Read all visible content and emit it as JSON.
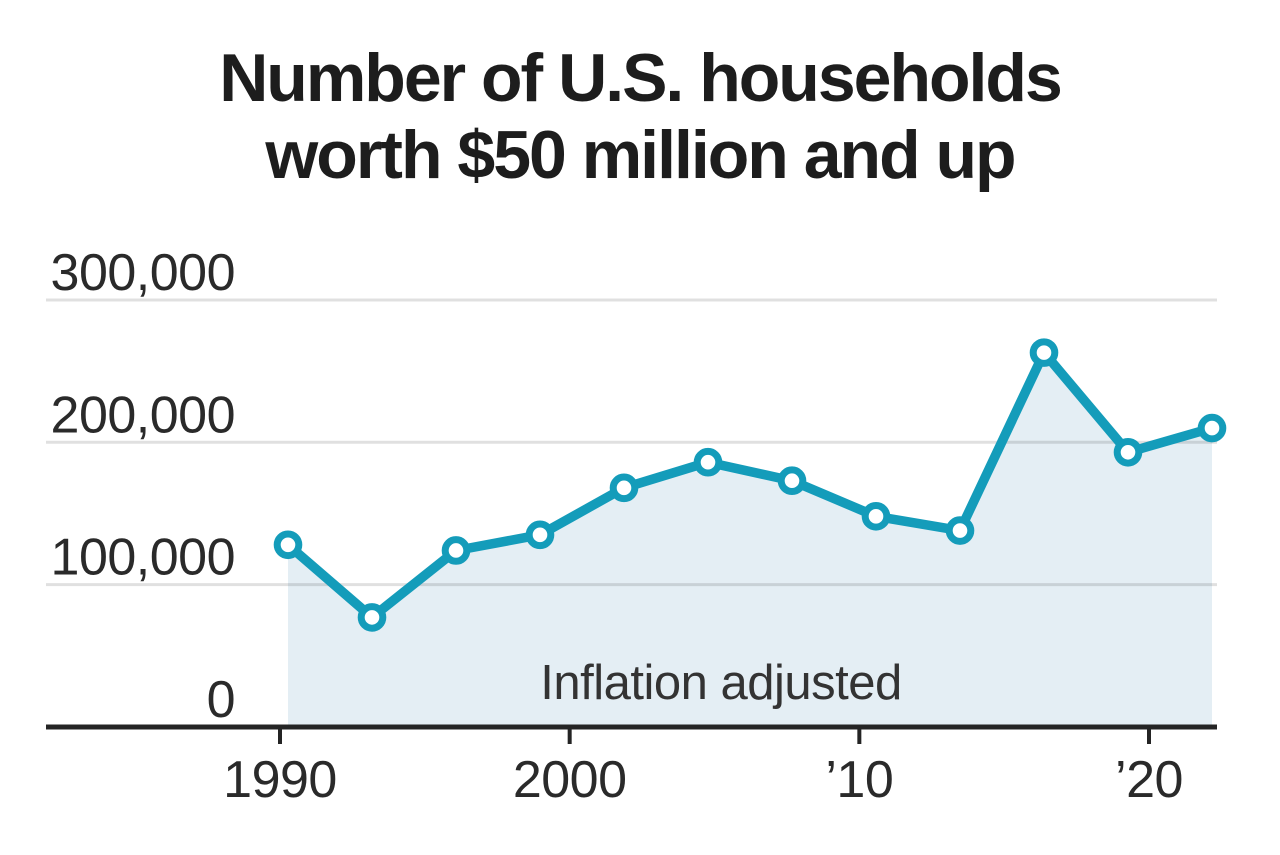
{
  "chart_data": {
    "type": "line",
    "title": "Number of U.S. households worth $50 million and up",
    "title_lines": [
      "Number of U.S. households",
      "worth $50 million and up"
    ],
    "annotation": "Inflation adjusted",
    "x": [
      1989,
      1992,
      1995,
      1998,
      2001,
      2004,
      2007,
      2010,
      2013,
      2016,
      2019,
      2022
    ],
    "series": [
      {
        "name": "U.S. households worth $50 million and up",
        "values": [
          128000,
          77000,
          124000,
          135000,
          168000,
          186000,
          173000,
          148000,
          138000,
          263000,
          193000,
          210000
        ]
      }
    ],
    "y_ticks": [
      {
        "value": 300000,
        "label": "300,000"
      },
      {
        "value": 200000,
        "label": "200,000"
      },
      {
        "value": 100000,
        "label": "100,000"
      },
      {
        "value": 0,
        "label": "0"
      }
    ],
    "x_ticks": [
      {
        "year": 1990,
        "label": "1990"
      },
      {
        "year": 2000,
        "label": "2000"
      },
      {
        "year": 2010,
        "label": "’10"
      },
      {
        "year": 2020,
        "label": "’20"
      }
    ],
    "ylim": [
      0,
      300000
    ],
    "grid": true,
    "legend": "none",
    "colors": {
      "line": "#149cba",
      "marker_fill": "#ffffff",
      "area_fill": "#e4eef4",
      "grid": "#e0e0e0",
      "axis": "#242424",
      "tick_text": "#2a2a2a",
      "title": "#1d1d1d",
      "annotation": "#333333"
    }
  }
}
